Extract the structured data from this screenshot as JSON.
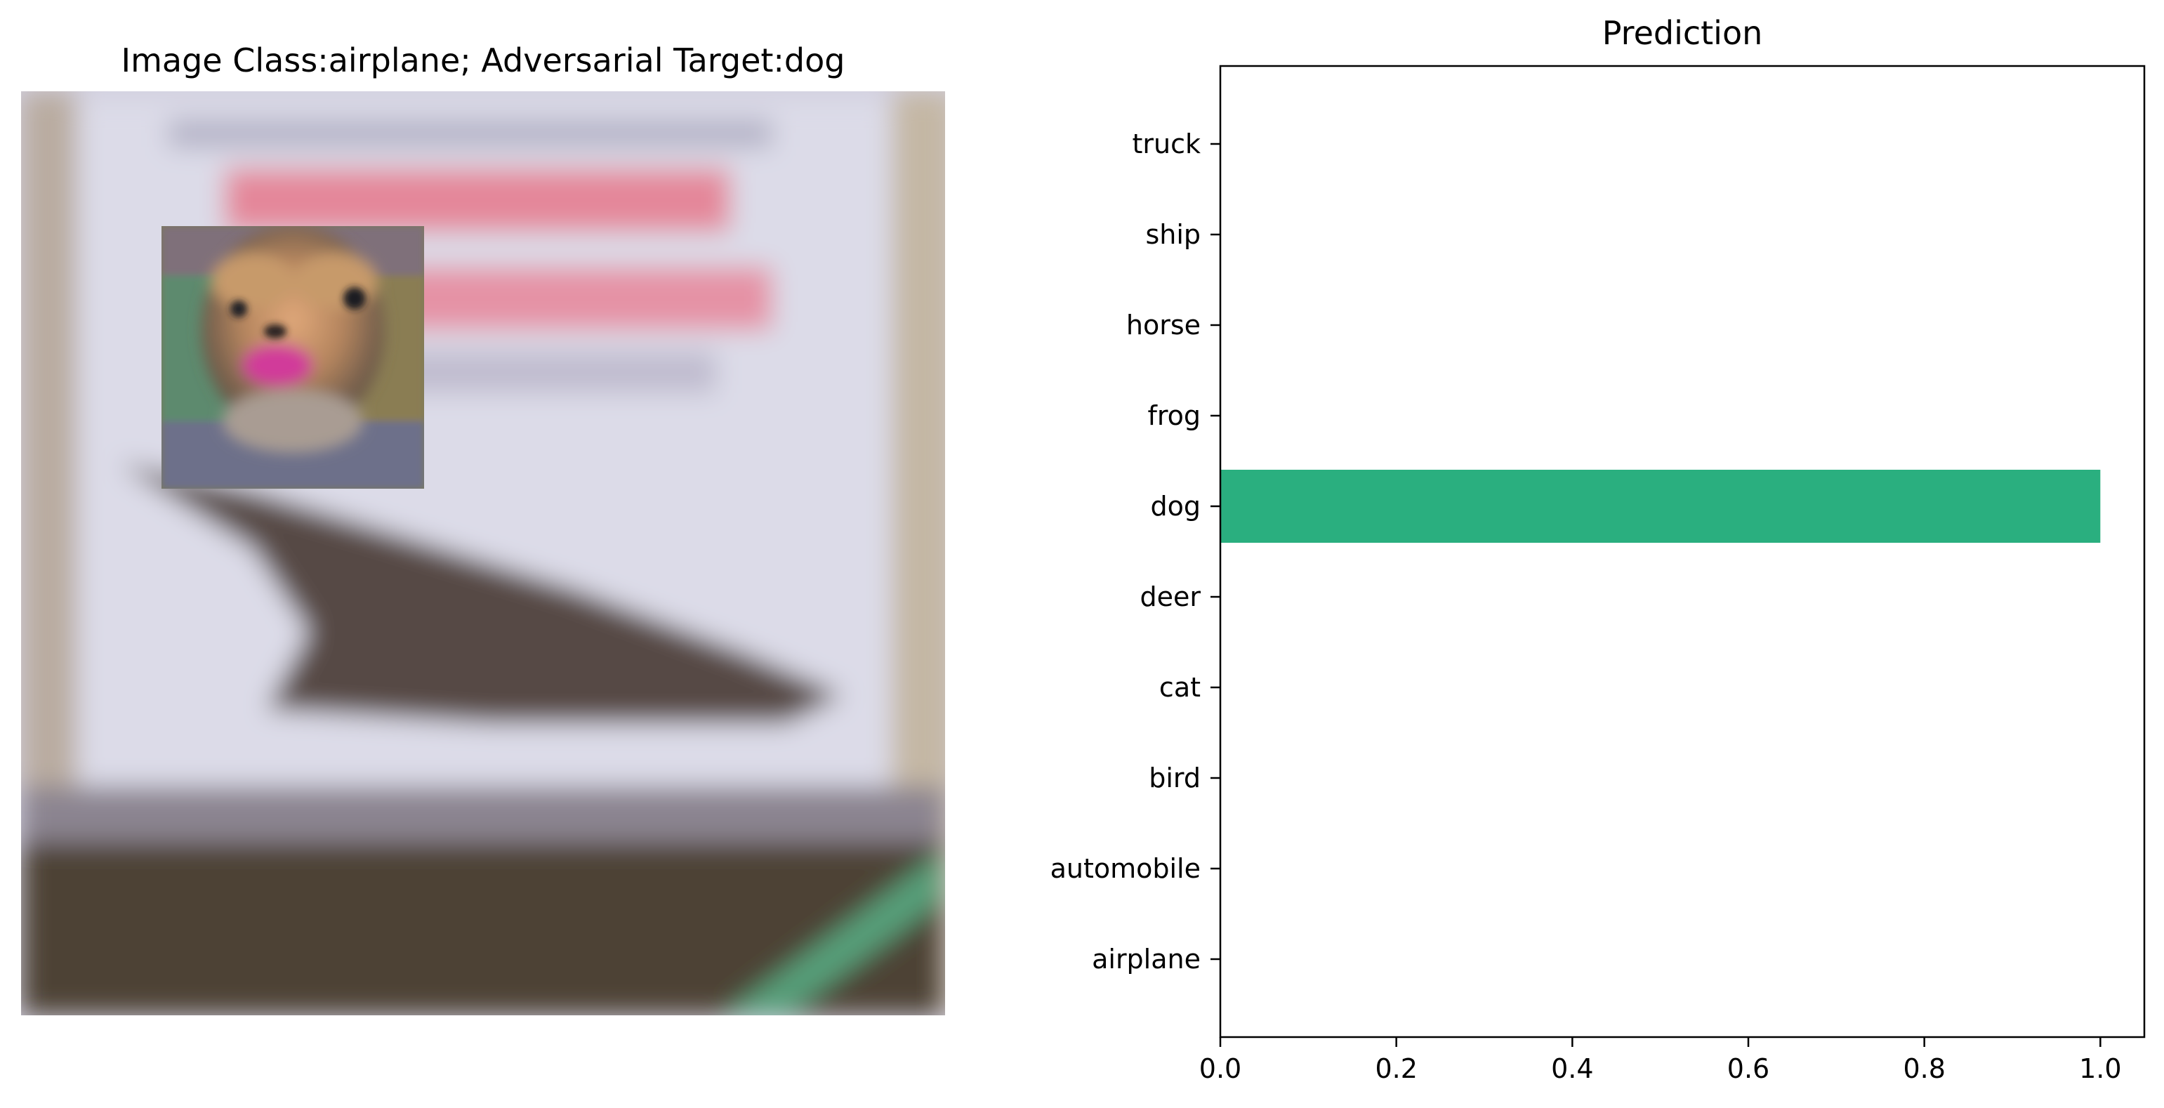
{
  "left_panel": {
    "title": "Image Class:airplane; Adversarial Target:dog"
  },
  "chart_data": {
    "type": "bar",
    "orientation": "horizontal",
    "title": "Prediction",
    "xlabel": "",
    "ylabel": "",
    "categories": [
      "airplane",
      "automobile",
      "bird",
      "cat",
      "deer",
      "dog",
      "frog",
      "horse",
      "ship",
      "truck"
    ],
    "values": [
      0.0,
      0.0,
      0.0,
      0.0,
      0.0,
      1.0,
      0.0,
      0.0,
      0.0,
      0.0
    ],
    "xlim": [
      0.0,
      1.05
    ],
    "xticks": [
      "0.0",
      "0.2",
      "0.4",
      "0.6",
      "0.8",
      "1.0"
    ],
    "grid": false,
    "bar_color": "#2aaf7f"
  }
}
